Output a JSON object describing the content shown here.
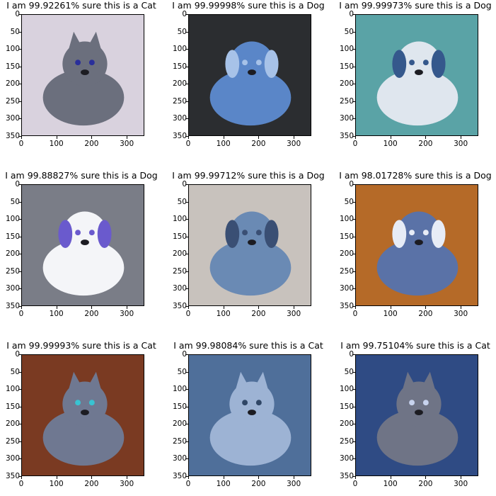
{
  "panels": [
    {
      "title": "I am 99.92261% sure this is a Cat",
      "subject": "cat",
      "palette": {
        "bg": "#d9d2de",
        "main": "#6b6f7d",
        "accent": "#2a2f9a"
      }
    },
    {
      "title": "I am 99.99998% sure this is a Dog",
      "subject": "dog",
      "palette": {
        "bg": "#2b2d30",
        "main": "#5a86c8",
        "accent": "#a7c2e8"
      }
    },
    {
      "title": "I am 99.99973% sure this is a Dog",
      "subject": "dog",
      "palette": {
        "bg": "#5aa3a6",
        "main": "#dfe6ee",
        "accent": "#35588c"
      }
    },
    {
      "title": "I am 99.88827% sure this is a Dog",
      "subject": "dog",
      "palette": {
        "bg": "#7a7d87",
        "main": "#f4f5f8",
        "accent": "#6a5acd"
      }
    },
    {
      "title": "I am 99.99712% sure this is a Dog",
      "subject": "dog",
      "palette": {
        "bg": "#c8c2bd",
        "main": "#6a8ab4",
        "accent": "#3a4f74"
      }
    },
    {
      "title": "I am 98.01728% sure this is a Dog",
      "subject": "dog",
      "palette": {
        "bg": "#b56a28",
        "main": "#5a72a7",
        "accent": "#e7ecf6"
      }
    },
    {
      "title": "I am 99.99993% sure this is a Cat",
      "subject": "cat",
      "palette": {
        "bg": "#7a3a22",
        "main": "#6f7891",
        "accent": "#39c3d2"
      }
    },
    {
      "title": "I am 99.98084% sure this is a Cat",
      "subject": "cat",
      "palette": {
        "bg": "#4f6f9a",
        "main": "#9db3d4",
        "accent": "#2f4666"
      }
    },
    {
      "title": "I am 99.75104% sure this is a Cat",
      "subject": "cat",
      "palette": {
        "bg": "#2f4b84",
        "main": "#6f7486",
        "accent": "#c7d3ee"
      }
    }
  ],
  "chart_data": {
    "type": "image_grid",
    "rows": 3,
    "cols": 3,
    "xlim": [
      0,
      350
    ],
    "ylim": [
      350,
      0
    ],
    "xticks": [
      0,
      100,
      200,
      300
    ],
    "yticks": [
      0,
      50,
      100,
      150,
      200,
      250,
      300,
      350
    ]
  }
}
